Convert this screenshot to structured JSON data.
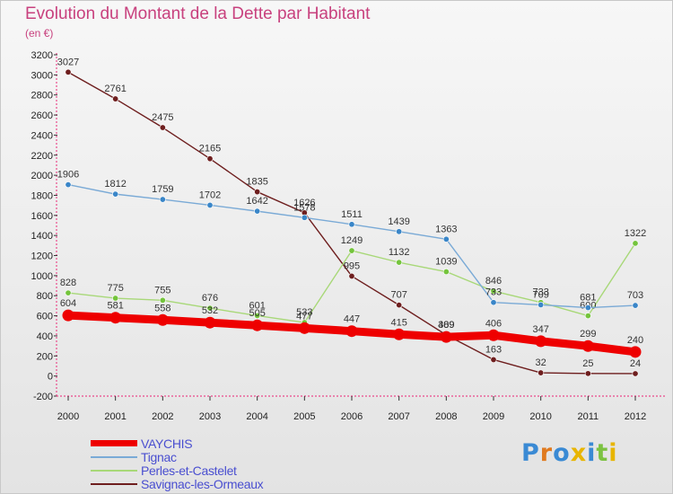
{
  "header": {
    "title": "Evolution du Montant de la Dette par Habitant",
    "subtitle": "(en €)"
  },
  "logo": {
    "text": "Proxiti",
    "letter_colors": [
      "#3a8ad4",
      "#e07a1f",
      "#3a8ad4",
      "#e8b500",
      "#3a8ad4",
      "#7cc242",
      "#e8b500"
    ]
  },
  "chart_data": {
    "type": "line",
    "x": [
      "2000",
      "2001",
      "2002",
      "2003",
      "2004",
      "2005",
      "2006",
      "2007",
      "2008",
      "2009",
      "2010",
      "2011",
      "2012"
    ],
    "ylim": [
      -200,
      3200
    ],
    "yticks": [
      -200,
      0,
      200,
      400,
      600,
      800,
      1000,
      1200,
      1400,
      1600,
      1800,
      2000,
      2200,
      2400,
      2600,
      2800,
      3000,
      3200
    ],
    "grid": false,
    "legend_position": "bottom-left",
    "series": [
      {
        "name": "Savignac-les-Ormeaux",
        "color": "#6e1e1e",
        "marker": "#6e1e1e",
        "values": [
          3027,
          2761,
          2475,
          2165,
          1835,
          1626,
          995,
          707,
          409,
          163,
          32,
          25,
          24
        ]
      },
      {
        "name": "Perles-et-Castelet",
        "color": "#a8d878",
        "marker": "#74c43c",
        "values": [
          828,
          775,
          755,
          676,
          601,
          533,
          1249,
          1132,
          1039,
          846,
          733,
          600,
          1322
        ]
      },
      {
        "name": "Tignac",
        "color": "#7aaad6",
        "marker": "#3a86c8",
        "values": [
          1906,
          1812,
          1759,
          1702,
          1642,
          1578,
          1511,
          1439,
          1363,
          733,
          709,
          681,
          703
        ]
      },
      {
        "name": "VAYCHIS",
        "color": "#ee0000",
        "marker": "#ee0000",
        "values": [
          604,
          581,
          558,
          532,
          505,
          477,
          447,
          415,
          389,
          406,
          347,
          299,
          240
        ]
      }
    ]
  }
}
